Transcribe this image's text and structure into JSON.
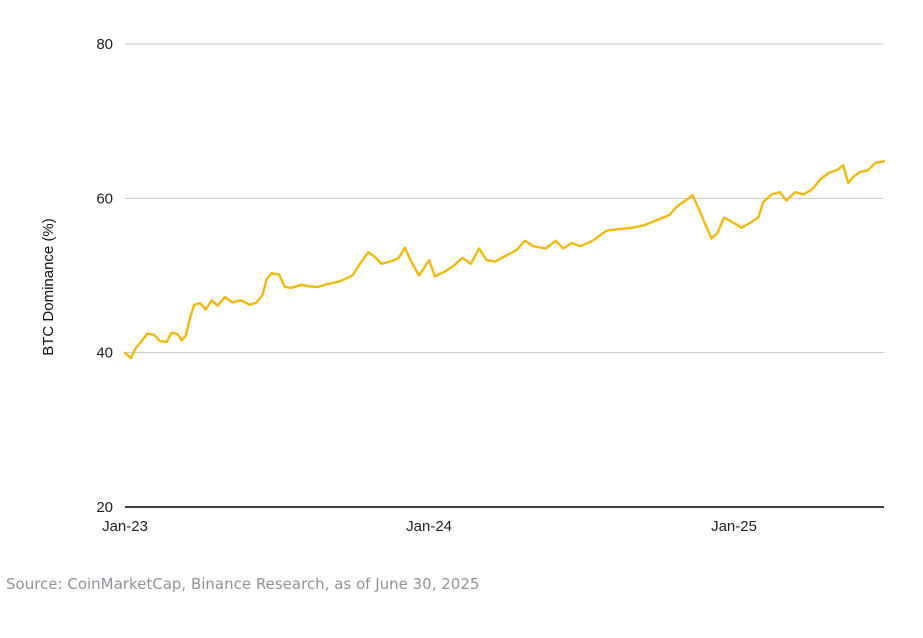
{
  "chart_data": {
    "type": "line",
    "title": "",
    "xlabel": "",
    "ylabel": "BTC Dominance (%)",
    "xlim": [
      "2023-01-01",
      "2025-06-30"
    ],
    "ylim": [
      20,
      80
    ],
    "y_ticks": [
      "20",
      "40",
      "60",
      "80"
    ],
    "x_ticks": [
      {
        "date": "2023-01-01",
        "label": "Jan-23"
      },
      {
        "date": "2024-01-01",
        "label": "Jan-24"
      },
      {
        "date": "2025-01-01",
        "label": "Jan-25"
      }
    ],
    "grid": true,
    "legend": "none",
    "series": [
      {
        "color": "#f0b90b",
        "points": [
          [
            "2023-01-01",
            40.0
          ],
          [
            "2023-01-08",
            39.3
          ],
          [
            "2023-01-14",
            40.6
          ],
          [
            "2023-01-21",
            41.5
          ],
          [
            "2023-01-28",
            42.5
          ],
          [
            "2023-02-05",
            42.3
          ],
          [
            "2023-02-12",
            41.5
          ],
          [
            "2023-02-20",
            41.4
          ],
          [
            "2023-02-26",
            42.6
          ],
          [
            "2023-03-05",
            42.4
          ],
          [
            "2023-03-10",
            41.6
          ],
          [
            "2023-03-15",
            42.2
          ],
          [
            "2023-03-20",
            44.5
          ],
          [
            "2023-03-25",
            46.2
          ],
          [
            "2023-04-01",
            46.4
          ],
          [
            "2023-04-08",
            45.6
          ],
          [
            "2023-04-15",
            46.8
          ],
          [
            "2023-04-22",
            46.1
          ],
          [
            "2023-05-01",
            47.2
          ],
          [
            "2023-05-10",
            46.5
          ],
          [
            "2023-05-20",
            46.8
          ],
          [
            "2023-05-31",
            46.2
          ],
          [
            "2023-06-08",
            46.5
          ],
          [
            "2023-06-15",
            47.5
          ],
          [
            "2023-06-20",
            49.5
          ],
          [
            "2023-06-26",
            50.3
          ],
          [
            "2023-07-05",
            50.1
          ],
          [
            "2023-07-12",
            48.5
          ],
          [
            "2023-07-20",
            48.4
          ],
          [
            "2023-08-01",
            48.8
          ],
          [
            "2023-08-10",
            48.6
          ],
          [
            "2023-08-20",
            48.5
          ],
          [
            "2023-09-01",
            48.9
          ],
          [
            "2023-09-15",
            49.2
          ],
          [
            "2023-10-01",
            50.0
          ],
          [
            "2023-10-10",
            51.5
          ],
          [
            "2023-10-20",
            53.0
          ],
          [
            "2023-10-27",
            52.5
          ],
          [
            "2023-11-05",
            51.5
          ],
          [
            "2023-11-15",
            51.8
          ],
          [
            "2023-11-25",
            52.2
          ],
          [
            "2023-12-03",
            53.6
          ],
          [
            "2023-12-10",
            51.9
          ],
          [
            "2023-12-20",
            50.0
          ],
          [
            "2024-01-01",
            52.0
          ],
          [
            "2024-01-08",
            49.9
          ],
          [
            "2024-01-20",
            50.5
          ],
          [
            "2024-02-01",
            51.4
          ],
          [
            "2024-02-10",
            52.3
          ],
          [
            "2024-02-20",
            51.5
          ],
          [
            "2024-03-01",
            53.5
          ],
          [
            "2024-03-10",
            52.0
          ],
          [
            "2024-03-20",
            51.8
          ],
          [
            "2024-04-01",
            52.5
          ],
          [
            "2024-04-15",
            53.3
          ],
          [
            "2024-04-25",
            54.5
          ],
          [
            "2024-05-05",
            53.8
          ],
          [
            "2024-05-20",
            53.5
          ],
          [
            "2024-06-01",
            54.5
          ],
          [
            "2024-06-10",
            53.5
          ],
          [
            "2024-06-20",
            54.2
          ],
          [
            "2024-07-01",
            53.8
          ],
          [
            "2024-07-15",
            54.5
          ],
          [
            "2024-08-01",
            55.8
          ],
          [
            "2024-08-15",
            56.0
          ],
          [
            "2024-09-01",
            56.2
          ],
          [
            "2024-09-15",
            56.5
          ],
          [
            "2024-10-01",
            57.2
          ],
          [
            "2024-10-15",
            57.8
          ],
          [
            "2024-10-25",
            59.0
          ],
          [
            "2024-11-05",
            59.8
          ],
          [
            "2024-11-12",
            60.4
          ],
          [
            "2024-11-20",
            58.6
          ],
          [
            "2024-11-28",
            56.5
          ],
          [
            "2024-12-05",
            54.8
          ],
          [
            "2024-12-12",
            55.5
          ],
          [
            "2024-12-20",
            57.5
          ],
          [
            "2025-01-01",
            56.8
          ],
          [
            "2025-01-10",
            56.2
          ],
          [
            "2025-01-20",
            56.8
          ],
          [
            "2025-01-30",
            57.5
          ],
          [
            "2025-02-05",
            59.5
          ],
          [
            "2025-02-15",
            60.5
          ],
          [
            "2025-02-25",
            60.8
          ],
          [
            "2025-03-05",
            59.7
          ],
          [
            "2025-03-15",
            60.8
          ],
          [
            "2025-03-25",
            60.5
          ],
          [
            "2025-04-05",
            61.2
          ],
          [
            "2025-04-15",
            62.5
          ],
          [
            "2025-04-25",
            63.3
          ],
          [
            "2025-05-05",
            63.7
          ],
          [
            "2025-05-12",
            64.3
          ],
          [
            "2025-05-18",
            62.0
          ],
          [
            "2025-05-24",
            62.8
          ],
          [
            "2025-06-01",
            63.4
          ],
          [
            "2025-06-10",
            63.6
          ],
          [
            "2025-06-20",
            64.6
          ],
          [
            "2025-06-30",
            64.8
          ]
        ]
      }
    ]
  },
  "source_text": "Source: CoinMarketCap, Binance Research, as of June 30, 2025"
}
